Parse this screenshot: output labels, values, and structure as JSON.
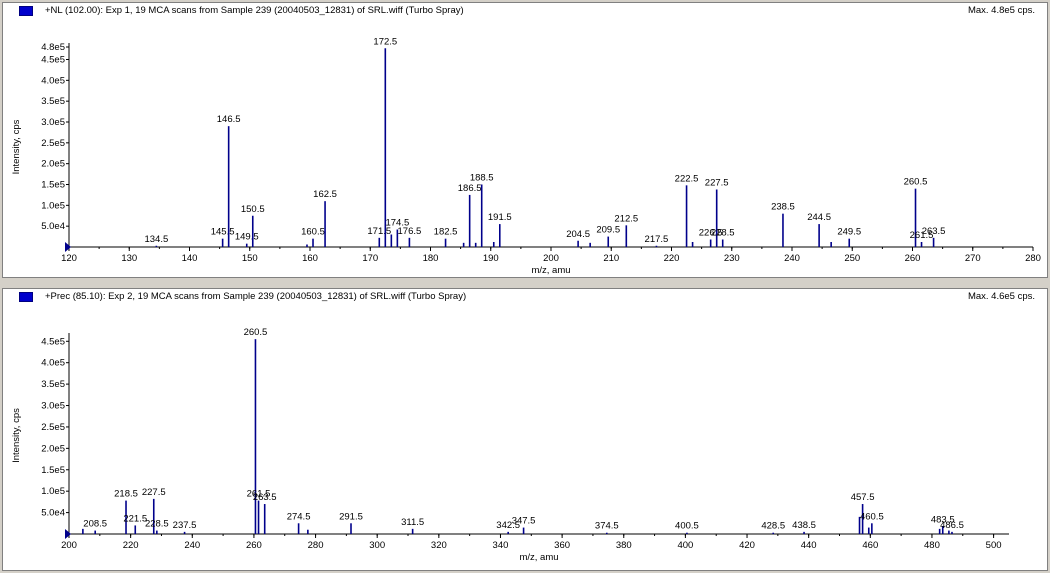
{
  "panes": [
    {
      "title": "+NL (102.00): Exp 1, 19 MCA scans from Sample 239 (20040503_12831) of SRL.wiff (Turbo Spray)",
      "max": "Max. 4.8e5 cps."
    },
    {
      "title": "+Prec (85.10): Exp 2, 19 MCA scans from Sample 239 (20040503_12831) of SRL.wiff (Turbo Spray)",
      "max": "Max. 4.6e5 cps."
    }
  ],
  "colors": {
    "peak": "#00008b",
    "marker": "#0000cc",
    "axis": "#000000"
  },
  "chart_data": [
    {
      "type": "bar",
      "xlabel": "m/z, amu",
      "ylabel": "Intensity, cps",
      "xlim": [
        120,
        280
      ],
      "ylim": [
        0,
        480000
      ],
      "xticks": [
        120,
        130,
        140,
        150,
        160,
        170,
        180,
        190,
        200,
        210,
        220,
        230,
        240,
        250,
        260,
        270,
        280
      ],
      "yticks": [
        {
          "v": 50000,
          "label": "5.0e4"
        },
        {
          "v": 100000,
          "label": "1.0e5"
        },
        {
          "v": 150000,
          "label": "1.5e5"
        },
        {
          "v": 200000,
          "label": "2.0e5"
        },
        {
          "v": 250000,
          "label": "2.5e5"
        },
        {
          "v": 300000,
          "label": "3.0e5"
        },
        {
          "v": 350000,
          "label": "3.5e5"
        },
        {
          "v": 400000,
          "label": "4.0e5"
        },
        {
          "v": 450000,
          "label": "4.5e5"
        },
        {
          "v": 480000,
          "label": "4.8e5"
        }
      ],
      "peaks": [
        {
          "x": 134.5,
          "y": 3000,
          "label": "134.5"
        },
        {
          "x": 145.5,
          "y": 20000,
          "label": "145.5"
        },
        {
          "x": 146.5,
          "y": 290000,
          "label": "146.5"
        },
        {
          "x": 149.5,
          "y": 8000,
          "label": "149.5"
        },
        {
          "x": 150.5,
          "y": 75000,
          "label": "150.5"
        },
        {
          "x": 159.5,
          "y": 6000,
          "label": ""
        },
        {
          "x": 160.5,
          "y": 20000,
          "label": "160.5"
        },
        {
          "x": 162.5,
          "y": 110000,
          "label": "162.5"
        },
        {
          "x": 171.5,
          "y": 22000,
          "label": "171.5"
        },
        {
          "x": 172.5,
          "y": 477000,
          "label": "172.5"
        },
        {
          "x": 173.5,
          "y": 30000,
          "label": ""
        },
        {
          "x": 174.5,
          "y": 42000,
          "label": "174.5"
        },
        {
          "x": 176.5,
          "y": 22000,
          "label": "176.5"
        },
        {
          "x": 182.5,
          "y": 20000,
          "label": "182.5"
        },
        {
          "x": 185.5,
          "y": 10000,
          "label": ""
        },
        {
          "x": 186.5,
          "y": 125000,
          "label": "186.5"
        },
        {
          "x": 187.5,
          "y": 10000,
          "label": ""
        },
        {
          "x": 188.5,
          "y": 150000,
          "label": "188.5"
        },
        {
          "x": 190.5,
          "y": 12000,
          "label": ""
        },
        {
          "x": 191.5,
          "y": 55000,
          "label": "191.5"
        },
        {
          "x": 204.5,
          "y": 15000,
          "label": "204.5"
        },
        {
          "x": 206.5,
          "y": 10000,
          "label": ""
        },
        {
          "x": 209.5,
          "y": 25000,
          "label": "209.5"
        },
        {
          "x": 212.5,
          "y": 52000,
          "label": "212.5"
        },
        {
          "x": 217.5,
          "y": 3000,
          "label": "217.5"
        },
        {
          "x": 222.5,
          "y": 148000,
          "label": "222.5"
        },
        {
          "x": 223.5,
          "y": 12000,
          "label": ""
        },
        {
          "x": 226.5,
          "y": 18000,
          "label": "226.5"
        },
        {
          "x": 227.5,
          "y": 138000,
          "label": "227.5"
        },
        {
          "x": 228.5,
          "y": 18000,
          "label": "228.5"
        },
        {
          "x": 238.5,
          "y": 80000,
          "label": "238.5"
        },
        {
          "x": 244.5,
          "y": 55000,
          "label": "244.5"
        },
        {
          "x": 246.5,
          "y": 12000,
          "label": ""
        },
        {
          "x": 249.5,
          "y": 20000,
          "label": "249.5"
        },
        {
          "x": 260.5,
          "y": 140000,
          "label": "260.5"
        },
        {
          "x": 261.5,
          "y": 12000,
          "label": "261.5"
        },
        {
          "x": 263.5,
          "y": 22000,
          "label": "263.5"
        }
      ]
    },
    {
      "type": "bar",
      "xlabel": "m/z, amu",
      "ylabel": "Intensity, cps",
      "xlim": [
        200,
        505
      ],
      "ylim": [
        0,
        460000
      ],
      "xticks": [
        200,
        220,
        240,
        260,
        280,
        300,
        320,
        340,
        360,
        380,
        400,
        420,
        440,
        460,
        480,
        500
      ],
      "yticks": [
        {
          "v": 50000,
          "label": "5.0e4"
        },
        {
          "v": 100000,
          "label": "1.0e5"
        },
        {
          "v": 150000,
          "label": "1.5e5"
        },
        {
          "v": 200000,
          "label": "2.0e5"
        },
        {
          "v": 250000,
          "label": "2.5e5"
        },
        {
          "v": 300000,
          "label": "3.0e5"
        },
        {
          "v": 350000,
          "label": "3.5e5"
        },
        {
          "v": 400000,
          "label": "4.0e5"
        },
        {
          "v": 450000,
          "label": "4.5e5"
        }
      ],
      "peaks": [
        {
          "x": 204.5,
          "y": 12000,
          "label": ""
        },
        {
          "x": 208.5,
          "y": 8000,
          "label": "208.5"
        },
        {
          "x": 218.5,
          "y": 78000,
          "label": "218.5"
        },
        {
          "x": 221.5,
          "y": 20000,
          "label": "221.5"
        },
        {
          "x": 227.5,
          "y": 82000,
          "label": "227.5"
        },
        {
          "x": 228.5,
          "y": 8000,
          "label": "228.5"
        },
        {
          "x": 237.5,
          "y": 5000,
          "label": "237.5"
        },
        {
          "x": 260.5,
          "y": 455000,
          "label": "260.5"
        },
        {
          "x": 261.5,
          "y": 78000,
          "label": "261.5"
        },
        {
          "x": 263.5,
          "y": 70000,
          "label": "263.5"
        },
        {
          "x": 274.5,
          "y": 25000,
          "label": "274.5"
        },
        {
          "x": 277.5,
          "y": 10000,
          "label": ""
        },
        {
          "x": 291.5,
          "y": 25000,
          "label": "291.5"
        },
        {
          "x": 311.5,
          "y": 12000,
          "label": "311.5"
        },
        {
          "x": 342.5,
          "y": 5000,
          "label": "342.5"
        },
        {
          "x": 347.5,
          "y": 15000,
          "label": "347.5"
        },
        {
          "x": 374.5,
          "y": 3000,
          "label": "374.5"
        },
        {
          "x": 400.5,
          "y": 3000,
          "label": "400.5"
        },
        {
          "x": 428.5,
          "y": 3000,
          "label": "428.5"
        },
        {
          "x": 438.5,
          "y": 5000,
          "label": "438.5"
        },
        {
          "x": 456.5,
          "y": 40000,
          "label": ""
        },
        {
          "x": 457.5,
          "y": 70000,
          "label": "457.5"
        },
        {
          "x": 459.5,
          "y": 15000,
          "label": ""
        },
        {
          "x": 460.5,
          "y": 25000,
          "label": "460.5"
        },
        {
          "x": 482.5,
          "y": 12000,
          "label": ""
        },
        {
          "x": 483.5,
          "y": 18000,
          "label": "483.5"
        },
        {
          "x": 485.5,
          "y": 8000,
          "label": ""
        },
        {
          "x": 486.5,
          "y": 5000,
          "label": "486.5"
        }
      ]
    }
  ]
}
